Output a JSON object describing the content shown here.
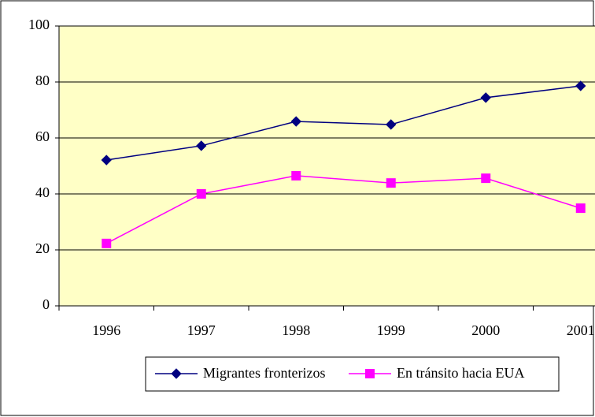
{
  "chart_data": {
    "type": "line",
    "categories": [
      "1996",
      "1997",
      "1998",
      "1999",
      "2000",
      "2001"
    ],
    "series": [
      {
        "name": "Migrantes fronterizos",
        "color": "#000080",
        "marker": "diamond",
        "values": [
          52.1,
          57.2,
          65.9,
          64.8,
          74.4,
          78.6
        ]
      },
      {
        "name": "En tránsito hacia EUA",
        "color": "#ff00ff",
        "marker": "square",
        "values": [
          22.3,
          40.0,
          46.5,
          43.9,
          45.6,
          34.9
        ]
      }
    ],
    "ylim": [
      0,
      100
    ],
    "yticks": [
      0,
      20,
      40,
      60,
      80,
      100
    ],
    "grid": true,
    "plot_background": "#ffffc6",
    "legend": "bottom"
  }
}
